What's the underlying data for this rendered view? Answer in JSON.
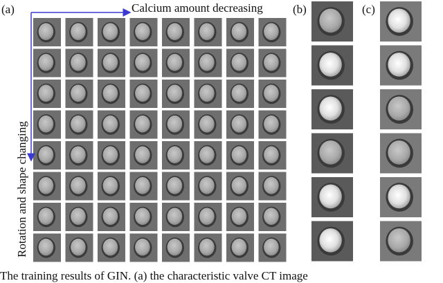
{
  "panels": {
    "a": {
      "label": "(a)",
      "x_axis": "Calcium amount decreasing",
      "y_axis": "Rotation and shape changing"
    },
    "b": {
      "label": "(b)"
    },
    "c": {
      "label": "(c)"
    }
  },
  "caption": "The training results of GIN. (a) the characteristic valve CT image"
}
